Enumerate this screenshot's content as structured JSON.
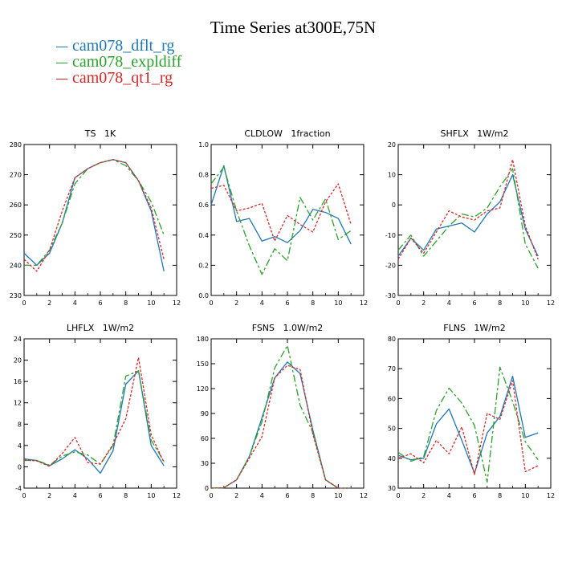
{
  "title": "Time Series at300E,75N",
  "legend": [
    {
      "label": "cam078_dflt_rg",
      "color": "#1f77b4"
    },
    {
      "label": "cam078_expldiff",
      "color": "#2ca02c"
    },
    {
      "label": "cam078_qt1_rg",
      "color": "#d62728"
    }
  ],
  "chart_data": [
    {
      "type": "line",
      "title": "TS   1K",
      "x": [
        0,
        1,
        2,
        3,
        4,
        5,
        6,
        7,
        8,
        9,
        10,
        11
      ],
      "xlim": [
        0,
        12
      ],
      "xticks": [
        0,
        2,
        4,
        6,
        8,
        10,
        12
      ],
      "ylim": [
        230,
        280
      ],
      "yticks": [
        230,
        240,
        250,
        260,
        270,
        280
      ],
      "series": [
        {
          "name": "cam078_dflt_rg",
          "values": [
            244,
            240,
            244,
            254,
            269,
            272,
            274,
            275,
            274,
            268,
            258,
            238
          ]
        },
        {
          "name": "cam078_expldiff",
          "values": [
            240,
            240,
            245,
            254,
            267,
            272,
            274,
            275,
            273,
            268,
            261,
            250
          ]
        },
        {
          "name": "cam078_qt1_rg",
          "values": [
            242,
            238,
            245,
            258,
            269,
            272,
            274,
            275,
            274,
            268,
            259,
            242
          ]
        }
      ]
    },
    {
      "type": "line",
      "title": "CLDLOW   1fraction",
      "x": [
        0,
        1,
        2,
        3,
        4,
        5,
        6,
        7,
        8,
        9,
        10,
        11
      ],
      "xlim": [
        0,
        12
      ],
      "xticks": [
        0,
        2,
        4,
        6,
        8,
        10,
        12
      ],
      "ylim": [
        0.0,
        1.0
      ],
      "yticks": [
        "0.0",
        "0.2",
        "0.4",
        "0.6",
        "0.8",
        "1.0"
      ],
      "series": [
        {
          "name": "cam078_dflt_rg",
          "values": [
            0.6,
            0.86,
            0.49,
            0.51,
            0.36,
            0.39,
            0.35,
            0.43,
            0.57,
            0.55,
            0.51,
            0.34
          ]
        },
        {
          "name": "cam078_expldiff",
          "values": [
            0.74,
            0.85,
            0.56,
            0.33,
            0.14,
            0.31,
            0.23,
            0.65,
            0.5,
            0.64,
            0.37,
            0.43
          ]
        },
        {
          "name": "cam078_qt1_rg",
          "values": [
            0.71,
            0.73,
            0.56,
            0.58,
            0.61,
            0.36,
            0.53,
            0.47,
            0.42,
            0.62,
            0.74,
            0.47
          ]
        }
      ]
    },
    {
      "type": "line",
      "title": "SHFLX   1W/m2",
      "x": [
        0,
        1,
        2,
        3,
        4,
        5,
        6,
        7,
        8,
        9,
        10,
        11
      ],
      "xlim": [
        0,
        12
      ],
      "xticks": [
        0,
        2,
        4,
        6,
        8,
        10,
        12
      ],
      "ylim": [
        -30,
        20
      ],
      "yticks": [
        -30,
        -20,
        -10,
        0,
        10,
        20
      ],
      "series": [
        {
          "name": "cam078_dflt_rg",
          "values": [
            -17,
            -11,
            -15,
            -8,
            -7,
            -6,
            -9,
            -3,
            1,
            10,
            -8,
            -17
          ]
        },
        {
          "name": "cam078_expldiff",
          "values": [
            -15,
            -10,
            -17,
            -12,
            -7,
            -3,
            -4,
            -1,
            6,
            12,
            -13,
            -21
          ]
        },
        {
          "name": "cam078_qt1_rg",
          "values": [
            -18,
            -11,
            -16,
            -9,
            -2,
            -4,
            -5,
            -2,
            -1,
            15,
            -7,
            -18
          ]
        }
      ]
    },
    {
      "type": "line",
      "title": "LHFLX   1W/m2",
      "x": [
        0,
        1,
        2,
        3,
        4,
        5,
        6,
        7,
        8,
        9,
        10,
        11
      ],
      "xlim": [
        0,
        12
      ],
      "xticks": [
        0,
        2,
        4,
        6,
        8,
        10,
        12
      ],
      "ylim": [
        -4,
        24
      ],
      "yticks": [
        -4,
        0,
        4,
        8,
        12,
        16,
        20,
        24
      ],
      "series": [
        {
          "name": "cam078_dflt_rg",
          "values": [
            1.5,
            1.2,
            0.2,
            1.5,
            3.2,
            1.5,
            -1.2,
            3,
            15.5,
            18,
            4,
            0.2
          ]
        },
        {
          "name": "cam078_expldiff",
          "values": [
            1.2,
            1.2,
            0.3,
            2,
            2.8,
            2.2,
            0.5,
            4,
            17,
            18,
            5,
            1
          ]
        },
        {
          "name": "cam078_qt1_rg",
          "values": [
            1.3,
            1.1,
            0.1,
            2.5,
            5.5,
            0.8,
            0.5,
            4.2,
            9,
            20.5,
            6,
            0.8
          ]
        }
      ]
    },
    {
      "type": "line",
      "title": "FSNS   1.0W/m2",
      "x": [
        0,
        1,
        2,
        3,
        4,
        5,
        6,
        7,
        8,
        9,
        10,
        11
      ],
      "xlim": [
        0,
        12
      ],
      "xticks": [
        0,
        2,
        4,
        6,
        8,
        10,
        12
      ],
      "ylim": [
        0,
        180
      ],
      "yticks": [
        0,
        30,
        60,
        90,
        120,
        150,
        180
      ],
      "series": [
        {
          "name": "cam078_dflt_rg",
          "values": [
            0,
            0.5,
            10,
            38,
            85,
            133,
            152,
            138,
            70,
            10,
            0,
            0
          ]
        },
        {
          "name": "cam078_expldiff",
          "values": [
            0,
            0.5,
            10,
            38,
            80,
            145,
            172,
            100,
            67,
            10,
            0,
            0
          ]
        },
        {
          "name": "cam078_qt1_rg",
          "values": [
            0,
            0.5,
            10,
            36,
            62,
            133,
            148,
            143,
            65,
            10,
            0,
            0
          ]
        }
      ]
    },
    {
      "type": "line",
      "title": "FLNS   1W/m2",
      "x": [
        0,
        1,
        2,
        3,
        4,
        5,
        6,
        7,
        8,
        9,
        10,
        11
      ],
      "xlim": [
        0,
        12
      ],
      "xticks": [
        0,
        2,
        4,
        6,
        8,
        10,
        12
      ],
      "ylim": [
        30,
        80
      ],
      "yticks": [
        30,
        40,
        50,
        60,
        70,
        80
      ],
      "series": [
        {
          "name": "cam078_dflt_rg",
          "values": [
            41,
            39.5,
            40,
            51.5,
            56.5,
            46,
            35,
            48.5,
            54,
            67.5,
            47,
            48.5
          ]
        },
        {
          "name": "cam078_expldiff",
          "values": [
            42,
            39,
            40.5,
            56,
            63.5,
            58.5,
            51,
            32,
            70.5,
            59,
            45.5,
            39.5
          ]
        },
        {
          "name": "cam078_qt1_rg",
          "values": [
            40,
            41.5,
            38.5,
            46,
            41.5,
            50.5,
            34.5,
            55,
            53,
            66,
            35.5,
            37.5
          ]
        }
      ]
    }
  ]
}
